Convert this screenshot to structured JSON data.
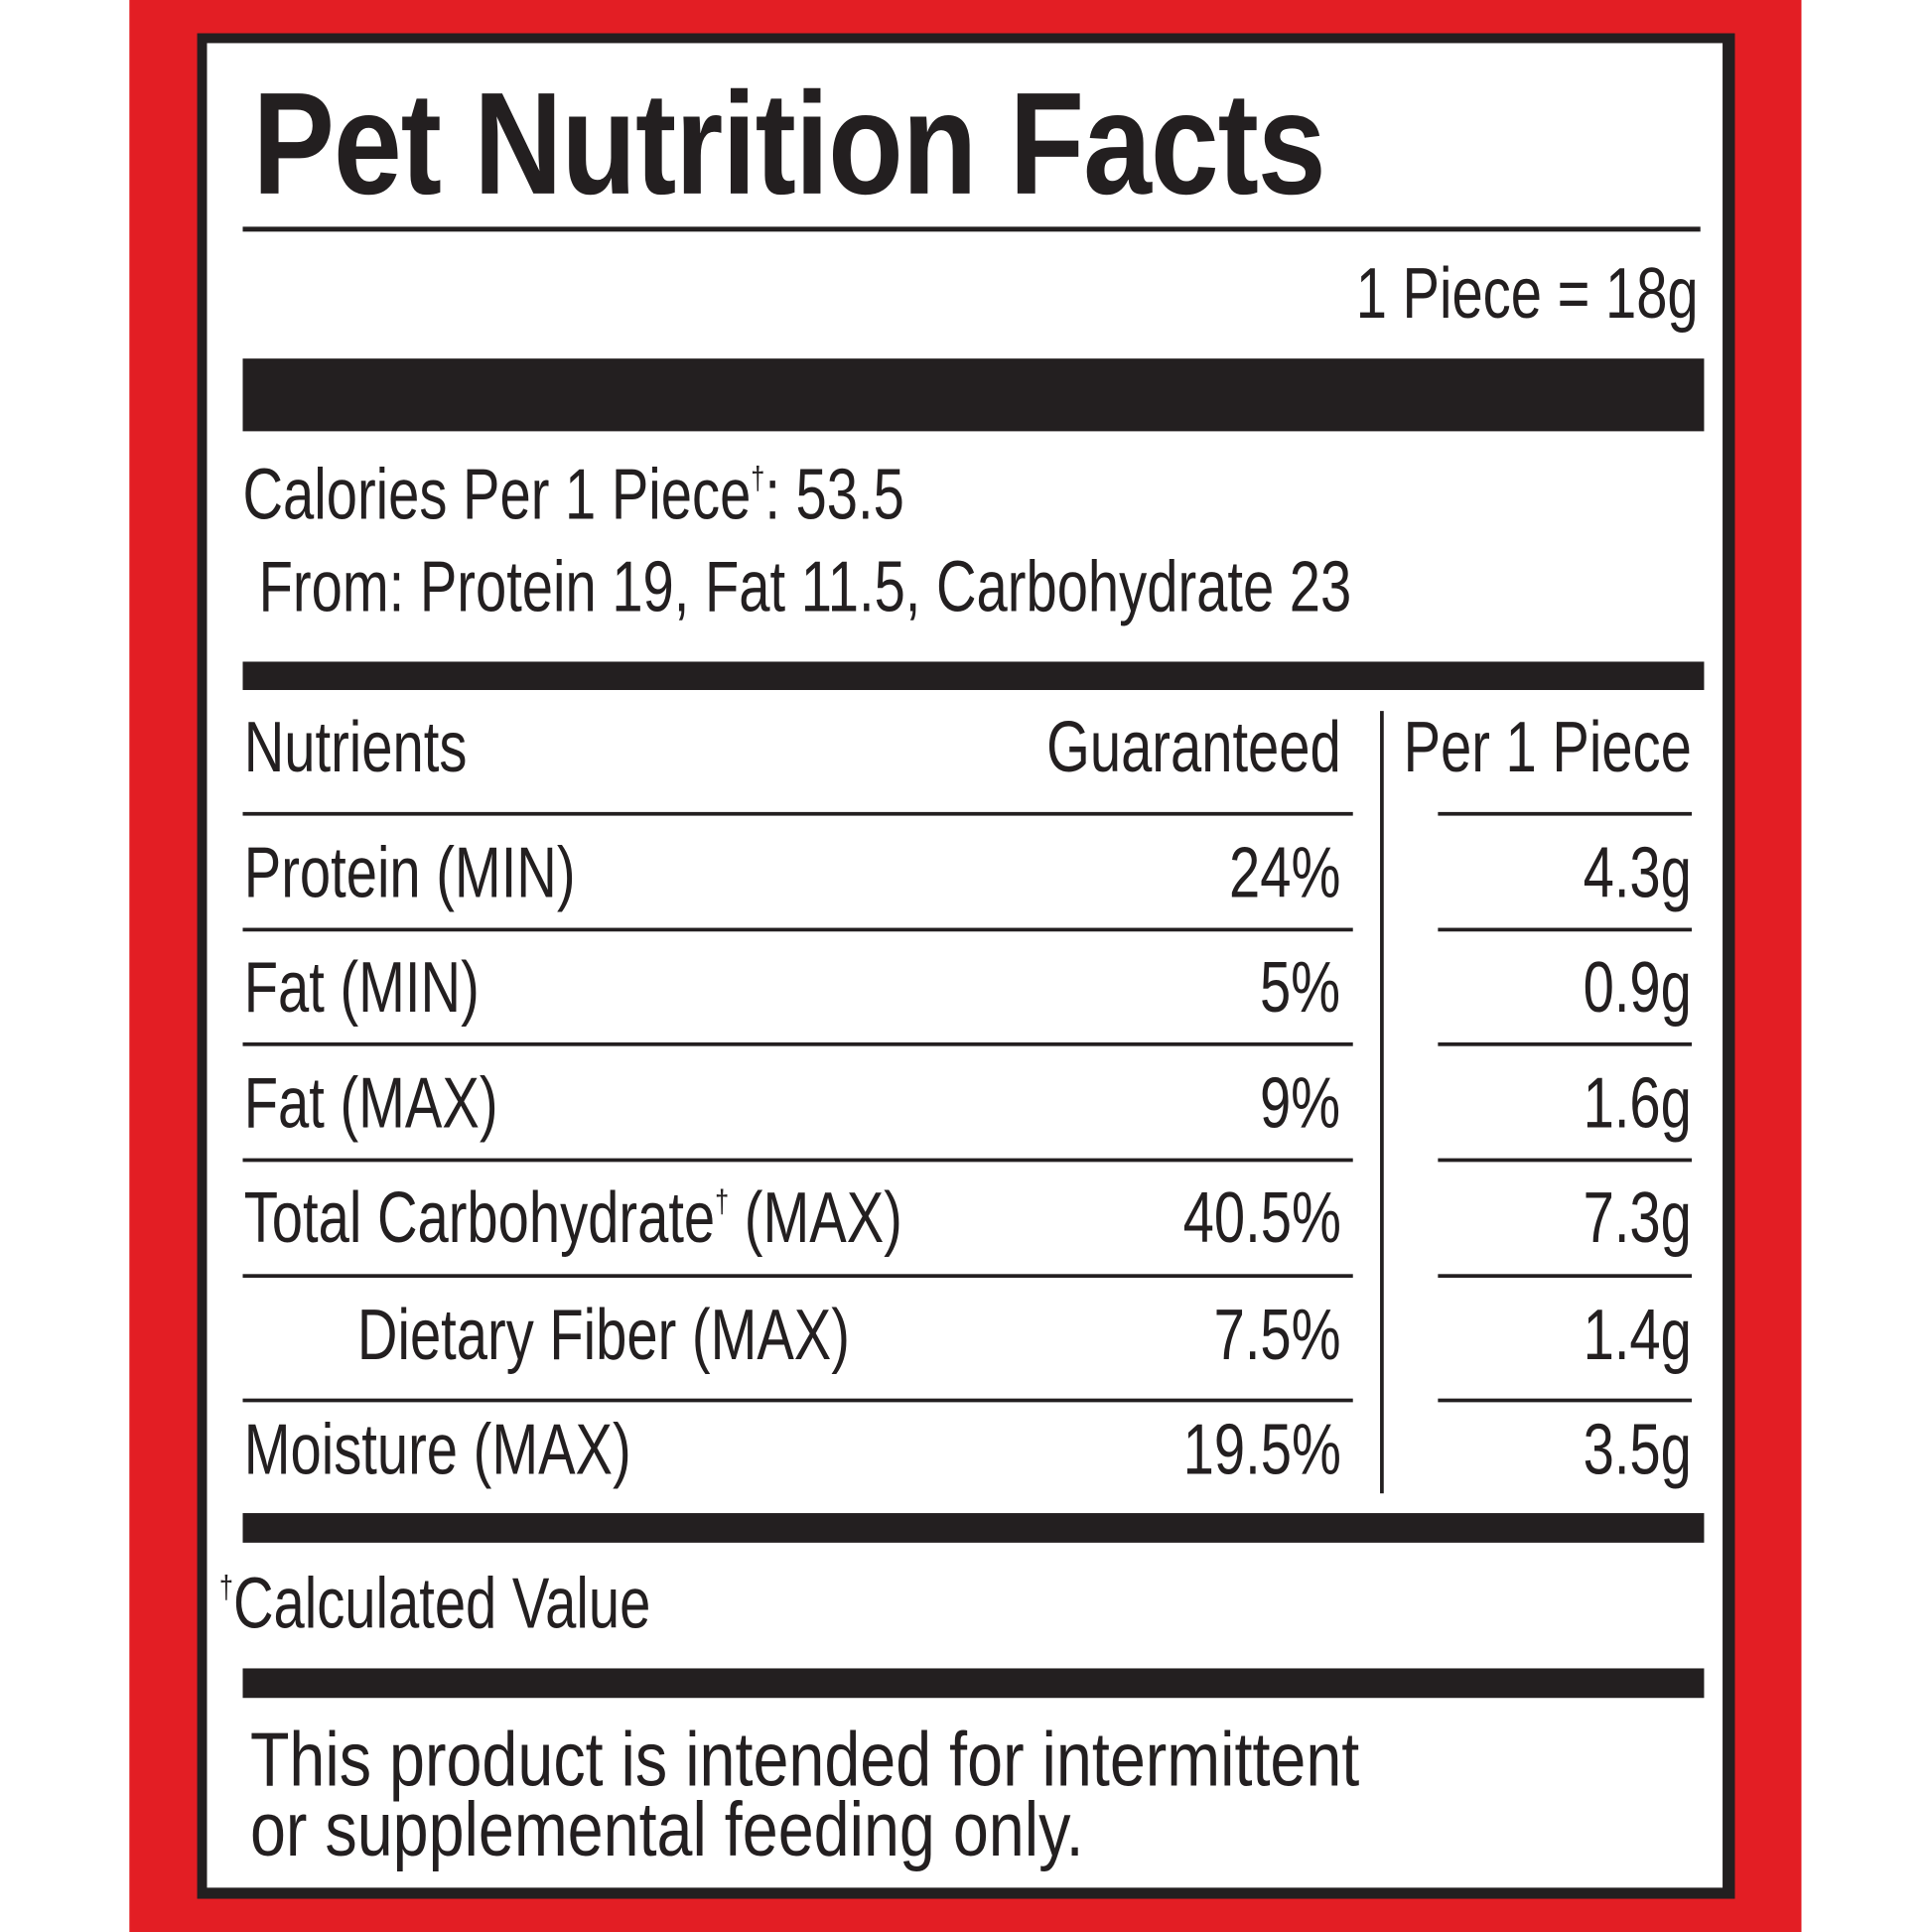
{
  "title": "Pet Nutrition Facts",
  "serving": "1 Piece = 18g",
  "calories": {
    "label": "Calories Per 1 Piece",
    "dagger": "†",
    "value": ": 53.5"
  },
  "calories_from": "From: Protein 19, Fat 11.5, Carbohydrate 23",
  "table": {
    "headers": {
      "nutrients": "Nutrients",
      "guaranteed": "Guaranteed",
      "per_piece": "Per 1 Piece"
    },
    "rows": [
      {
        "name": "Protein (MIN)",
        "guaranteed": "24%",
        "per_piece": "4.3g"
      },
      {
        "name": "Fat (MIN)",
        "guaranteed": "5%",
        "per_piece": "0.9g"
      },
      {
        "name": "Fat (MAX)",
        "guaranteed": "9%",
        "per_piece": "1.6g"
      },
      {
        "name": "Total Carbohydrate",
        "dagger": "†",
        "suffix": " (MAX)",
        "guaranteed": "40.5%",
        "per_piece": "7.3g"
      },
      {
        "name": "Dietary Fiber (MAX)",
        "guaranteed": "7.5%",
        "per_piece": "1.4g"
      },
      {
        "name": "Moisture (MAX)",
        "guaranteed": "19.5%",
        "per_piece": "3.5g"
      }
    ]
  },
  "footnote": {
    "dagger": "†",
    "text": "Calculated Value"
  },
  "disclaimer": [
    "This product is intended for intermittent",
    "or supplemental feeding only."
  ],
  "colors": {
    "border_red": "#e31e24",
    "ink": "#231f20"
  }
}
